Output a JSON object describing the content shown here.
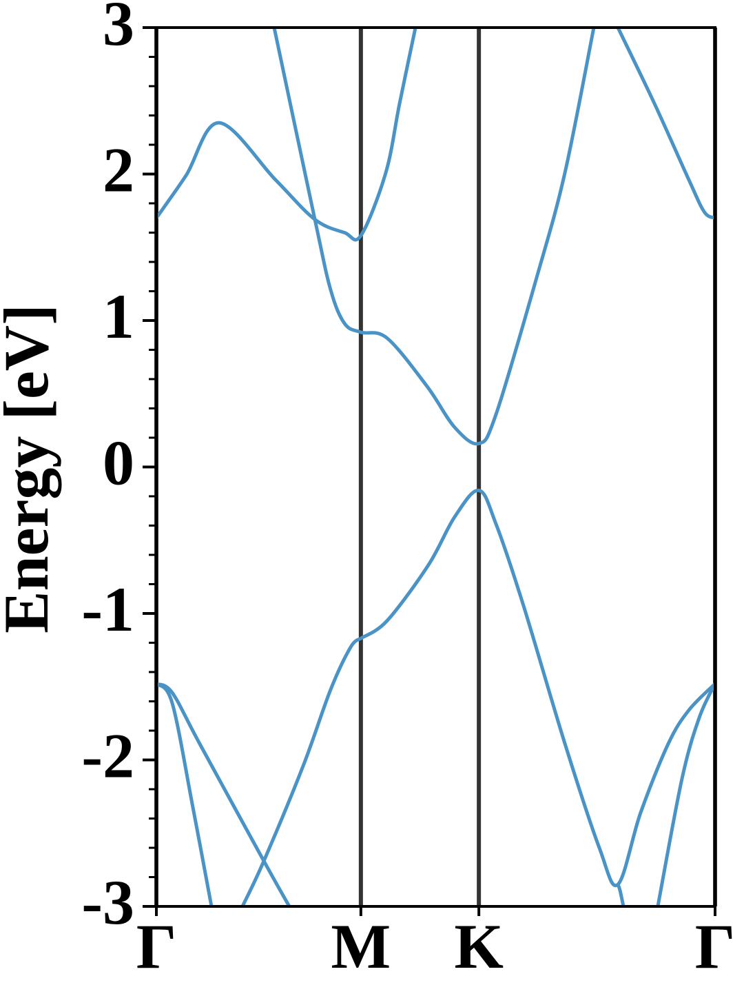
{
  "chart_data": {
    "type": "line",
    "ylabel": "Energy [eV]",
    "xlim": [
      0,
      2.732
    ],
    "ylim": [
      -3,
      3
    ],
    "xticks": [
      {
        "value": 0,
        "label": "Γ"
      },
      {
        "value": 1,
        "label": "M"
      },
      {
        "value": 1.577,
        "label": "K"
      },
      {
        "value": 2.732,
        "label": "Γ"
      }
    ],
    "yticks": [
      -3,
      -2,
      -1,
      0,
      1,
      2,
      3
    ],
    "yminorticks": [
      -2.8,
      -2.6,
      -2.4,
      -2.2,
      -1.8,
      -1.6,
      -1.4,
      -1.2,
      -0.8,
      -0.6,
      -0.4,
      -0.2,
      0.2,
      0.4,
      0.6,
      0.8,
      1.2,
      1.4,
      1.6,
      1.8,
      2.2,
      2.4,
      2.6,
      2.8
    ],
    "xgrid": true,
    "grid_color": "#333333",
    "series": [
      {
        "color": "#4a93c6",
        "x": [
          0,
          0.145,
          0.307,
          0.583,
          0.775,
          0.92,
          1.0,
          1.122,
          1.189,
          1.267,
          null,
          2.257,
          2.436,
          2.604,
          2.68,
          2.732
        ],
        "values": [
          1.7,
          1.99,
          2.35,
          1.96,
          1.69,
          1.6,
          1.58,
          2.01,
          2.48,
          3.0,
          null,
          3.0,
          2.48,
          1.96,
          1.74,
          1.7
        ]
      },
      {
        "color": "#4a93c6",
        "x": [
          0.576,
          0.775,
          0.852,
          0.92,
          1.0,
          1.128,
          1.324,
          1.459,
          1.577,
          1.661,
          1.863,
          1.998,
          2.139
        ],
        "values": [
          3.0,
          1.69,
          1.21,
          0.98,
          0.92,
          0.88,
          0.55,
          0.27,
          0.16,
          0.36,
          1.31,
          2.01,
          3.0
        ]
      },
      {
        "color": "#4a93c6",
        "x": [
          1.0,
          1.128,
          1.33,
          1.459,
          1.577,
          1.661,
          1.796,
          1.998,
          2.166,
          2.257,
          2.368,
          2.503,
          2.604,
          2.732
        ],
        "values": [
          -1.17,
          -1.05,
          -0.67,
          -0.34,
          -0.16,
          -0.39,
          -0.95,
          -1.89,
          -2.6,
          -2.85,
          -2.36,
          -1.89,
          -1.66,
          -1.48
        ]
      },
      {
        "color": "#4a93c6",
        "x": [
          0.421,
          0.5255,
          0.718,
          0.852,
          0.95,
          1.0
        ],
        "values": [
          -3.0,
          -2.69,
          -2.04,
          -1.52,
          -1.23,
          -1.17
        ]
      },
      {
        "color": "#4a93c6",
        "x": [
          0,
          0.077,
          0.212,
          0.5255,
          0.65
        ],
        "values": [
          -1.48,
          -1.54,
          -1.89,
          -2.69,
          -3.0
        ]
      },
      {
        "color": "#4a93c6",
        "x": [
          0,
          0.077,
          0.178,
          0.2695
        ],
        "values": [
          -1.48,
          -1.61,
          -2.32,
          -3.0
        ]
      },
      {
        "color": "#4a93c6",
        "x": [
          2.257,
          2.267,
          2.284
        ],
        "values": [
          -2.85,
          -2.89,
          -3.0
        ]
      },
      {
        "color": "#4a93c6",
        "x": [
          2.452,
          2.57,
          2.655,
          2.732
        ],
        "values": [
          -3.0,
          -2.13,
          -1.71,
          -1.48
        ]
      }
    ]
  }
}
